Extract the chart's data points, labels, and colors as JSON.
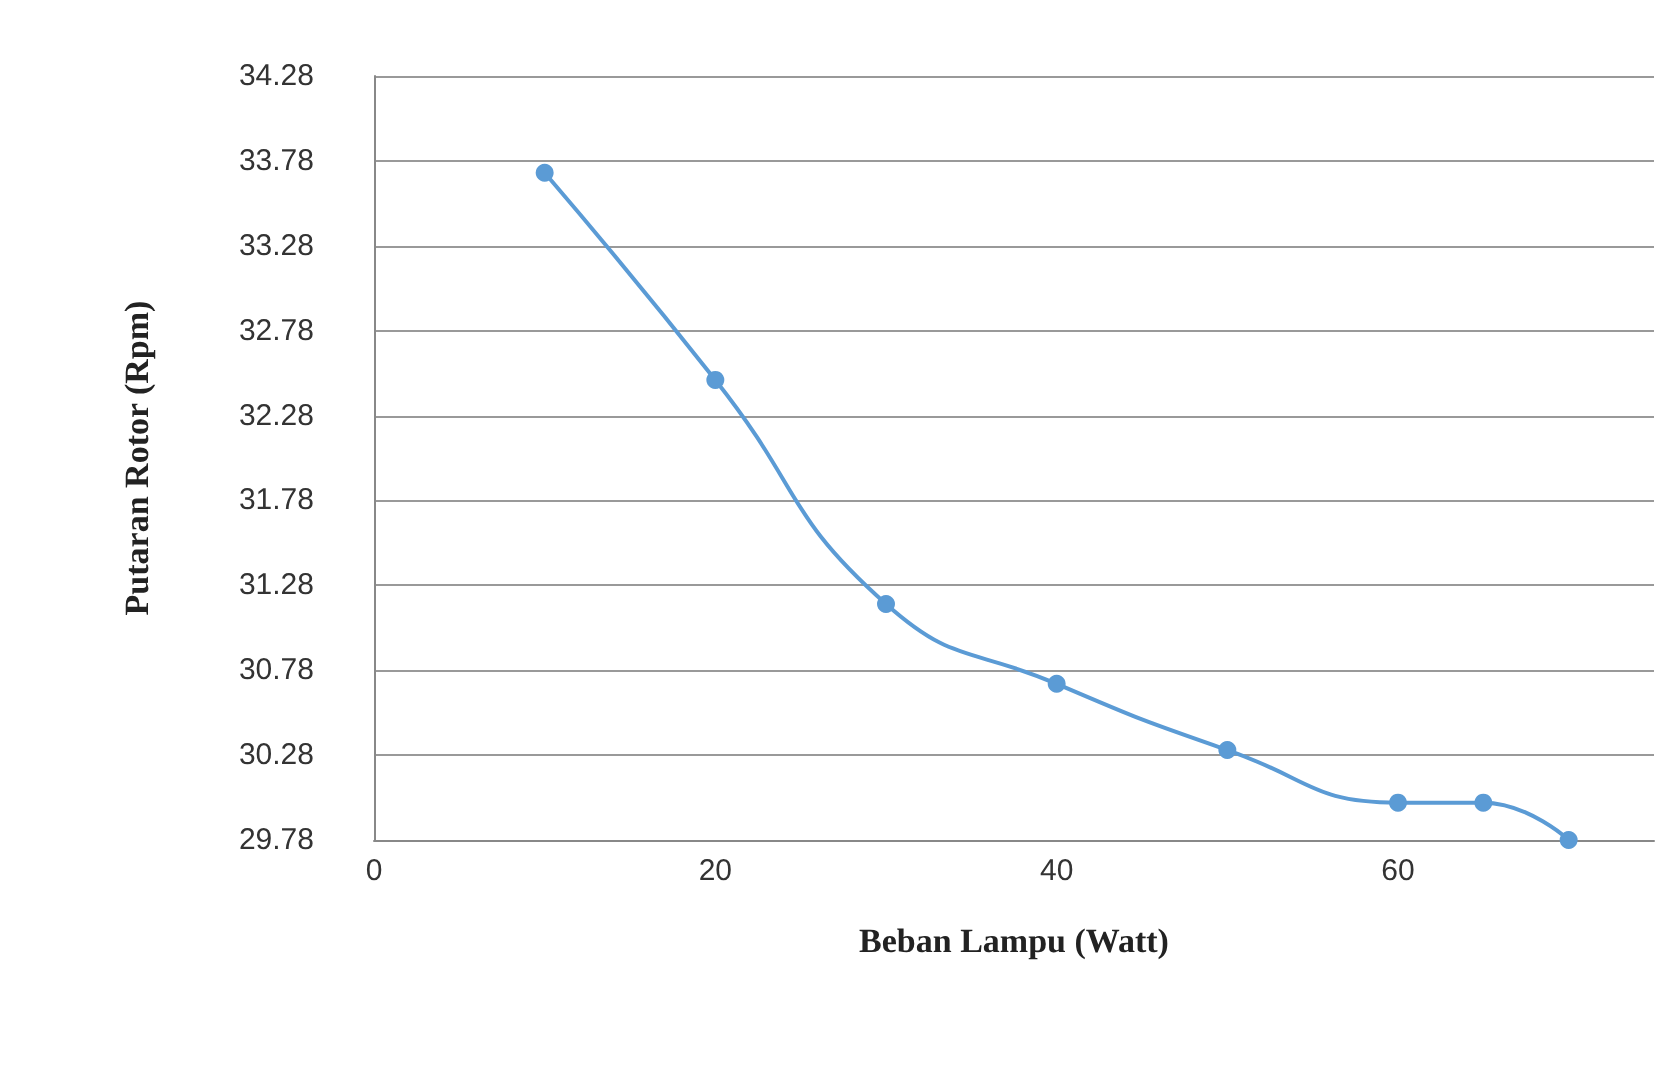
{
  "chart_data": {
    "type": "line",
    "xlabel": "Beban Lampu (Watt)",
    "ylabel": "Putaran Rotor (Rpm)",
    "x": [
      10,
      20,
      30,
      40,
      50,
      60,
      65,
      70
    ],
    "series": [
      {
        "color": "#5b9bd5",
        "values": [
          33.71,
          32.49,
          31.17,
          30.7,
          30.31,
          30.0,
          30.0,
          29.78
        ]
      }
    ],
    "xlim": [
      0,
      75
    ],
    "xticks": [
      0,
      20,
      40,
      60
    ],
    "ylim": [
      29.78,
      34.28
    ],
    "yticks": [
      29.78,
      30.28,
      30.78,
      31.28,
      31.78,
      32.28,
      32.78,
      33.28,
      33.78,
      34.28
    ],
    "grid": "y",
    "marker": "circle",
    "line_style": "solid"
  }
}
